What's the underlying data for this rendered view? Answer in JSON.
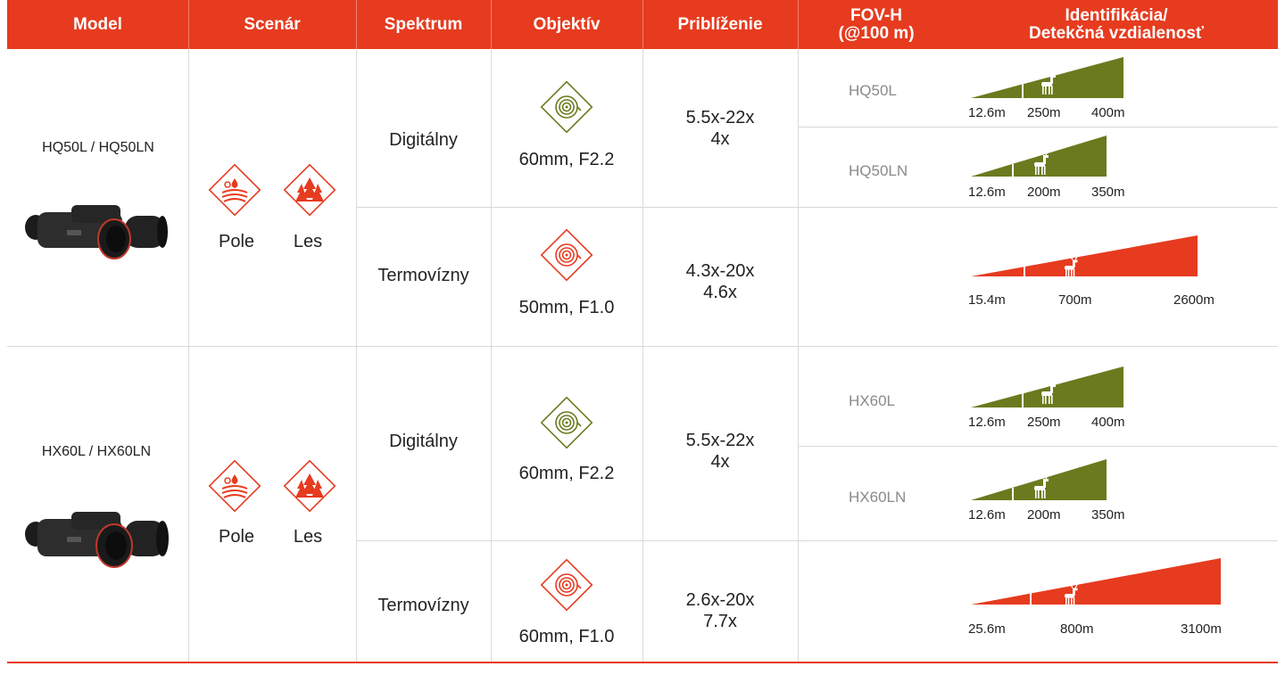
{
  "header": {
    "model": "Model",
    "scenario": "Scenár",
    "spectrum": "Spektrum",
    "objective": "Objektív",
    "zoom": "Priblíženie",
    "fov_line1": "FOV-H",
    "fov_line2": "(@100 m)",
    "ident_line1": "Identifikácia/",
    "ident_line2": "Detekčná vzdialenosť"
  },
  "colors": {
    "accent": "#e63b1f",
    "digital": "#6b7a1e",
    "thermal": "#e63b1f"
  },
  "rows": [
    {
      "model": "HQ50L / HQ50LN",
      "scenario": [
        "Pole",
        "Les"
      ],
      "digital": {
        "spectrum": "Digitálny",
        "lens": "60mm, F2.2",
        "zoom1": "5.5x-22x",
        "zoom2": "4x",
        "variants": [
          {
            "name": "HQ50L",
            "d1": "12.6m",
            "d2": "250m",
            "d3": "400m"
          },
          {
            "name": "HQ50LN",
            "d1": "12.6m",
            "d2": "200m",
            "d3": "350m"
          }
        ]
      },
      "thermal": {
        "spectrum": "Termovízny",
        "lens": "50mm, F1.0",
        "zoom1": "4.3x-20x",
        "zoom2": "4.6x",
        "d1": "15.4m",
        "d2": "700m",
        "d3": "2600m"
      }
    },
    {
      "model": "HX60L / HX60LN",
      "scenario": [
        "Pole",
        "Les"
      ],
      "digital": {
        "spectrum": "Digitálny",
        "lens": "60mm, F2.2",
        "zoom1": "5.5x-22x",
        "zoom2": "4x",
        "variants": [
          {
            "name": "HX60L",
            "d1": "12.6m",
            "d2": "250m",
            "d3": "400m"
          },
          {
            "name": "HX60LN",
            "d1": "12.6m",
            "d2": "200m",
            "d3": "350m"
          }
        ]
      },
      "thermal": {
        "spectrum": "Termovízny",
        "lens": "60mm, F1.0",
        "zoom1": "2.6x-20x",
        "zoom2": "7.7x",
        "d1": "25.6m",
        "d2": "800m",
        "d3": "3100m"
      }
    }
  ]
}
